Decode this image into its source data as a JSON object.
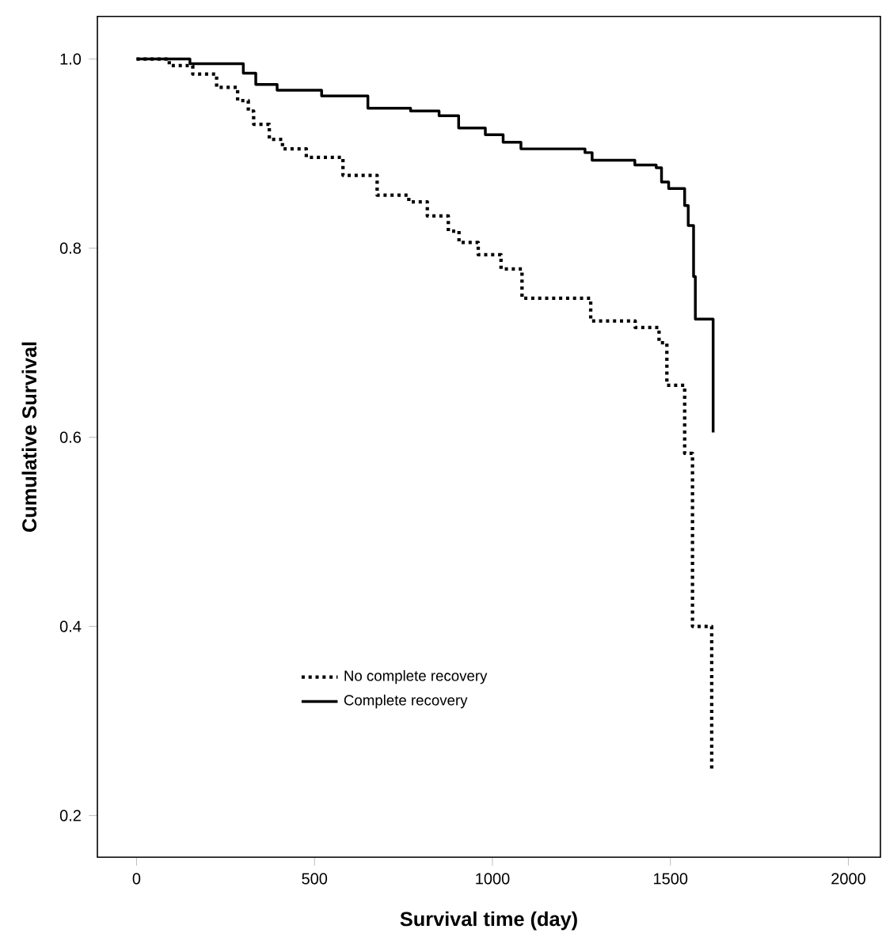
{
  "chart_data": {
    "type": "step",
    "xlabel": "Survival time (day)",
    "ylabel": "Cumulative Survival",
    "xlim": [
      -110,
      2090
    ],
    "ylim": [
      0.156,
      1.045
    ],
    "xticks": [
      0,
      500,
      1000,
      1500,
      2000
    ],
    "yticks": [
      0.2,
      0.4,
      0.6,
      0.8,
      {
        "value": 1.0,
        "label": "1.0"
      }
    ],
    "legend": "bottom left",
    "grid": false,
    "series": [
      {
        "name": "No complete recovery",
        "color": "#000000",
        "line_style": "dotted",
        "x": [
          0,
          92,
          158,
          225,
          284,
          314,
          329,
          373,
          410,
          477,
          580,
          676,
          765,
          817,
          876,
          906,
          960,
          1024,
          1083,
          1276,
          1401,
          1468,
          1490,
          1540,
          1562,
          1616,
          1616
        ],
        "values": [
          1.0,
          0.993,
          0.984,
          0.97,
          0.956,
          0.945,
          0.931,
          0.915,
          0.905,
          0.896,
          0.877,
          0.856,
          0.849,
          0.834,
          0.818,
          0.806,
          0.793,
          0.778,
          0.747,
          0.723,
          0.716,
          0.7,
          0.655,
          0.583,
          0.4,
          0.397,
          0.248
        ]
      },
      {
        "name": "Complete recovery",
        "color": "#000000",
        "line_style": "solid",
        "x": [
          0,
          150,
          300,
          335,
          395,
          520,
          650,
          770,
          850,
          905,
          980,
          1030,
          1080,
          1260,
          1280,
          1400,
          1460,
          1475,
          1495,
          1540,
          1550,
          1565,
          1570,
          1620
        ],
        "values": [
          1.0,
          0.995,
          0.985,
          0.973,
          0.967,
          0.961,
          0.948,
          0.945,
          0.94,
          0.927,
          0.92,
          0.912,
          0.905,
          0.901,
          0.893,
          0.888,
          0.885,
          0.87,
          0.863,
          0.845,
          0.824,
          0.77,
          0.725,
          0.605
        ]
      }
    ]
  }
}
